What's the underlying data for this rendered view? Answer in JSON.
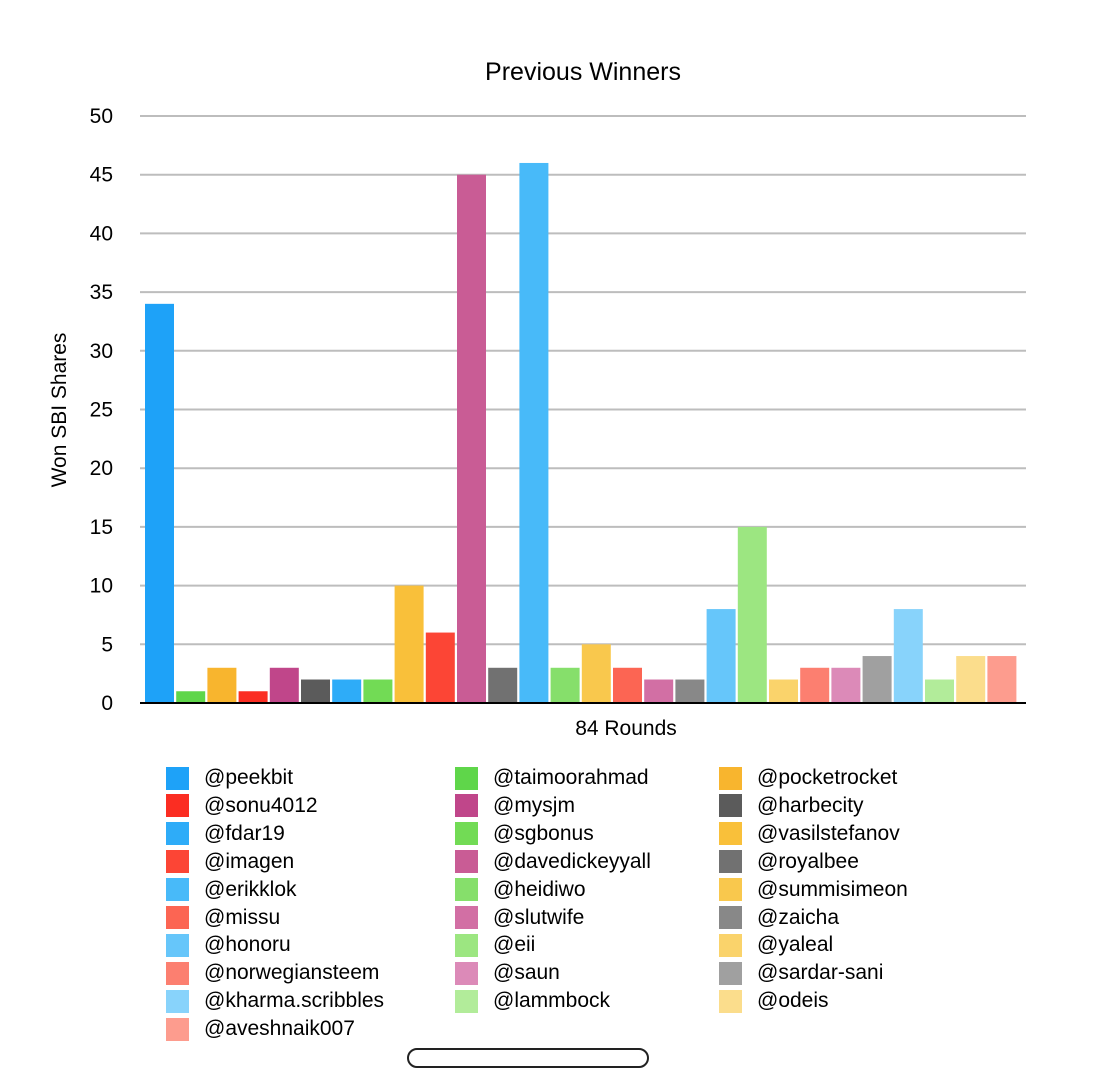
{
  "chart_data": {
    "type": "bar",
    "title": "Previous Winners",
    "xlabel": "84 Rounds",
    "ylabel": "Won SBI Shares",
    "ylim": [
      0,
      50
    ],
    "yticks": [
      0,
      5,
      10,
      15,
      20,
      25,
      30,
      35,
      40,
      45,
      50
    ],
    "grid": true,
    "legend_position": "bottom",
    "series": [
      {
        "name": "@peekbit",
        "value": 34,
        "color": "#1ea2f8"
      },
      {
        "name": "@taimoorahmad",
        "value": 1,
        "color": "#5fd64a"
      },
      {
        "name": "@pocketrocket",
        "value": 3,
        "color": "#f8b52e"
      },
      {
        "name": "@sonu4012",
        "value": 1,
        "color": "#fb2d22"
      },
      {
        "name": "@mysjm",
        "value": 3,
        "color": "#c0468a"
      },
      {
        "name": "@harbecity",
        "value": 2,
        "color": "#5b5b5b"
      },
      {
        "name": "@fdar19",
        "value": 2,
        "color": "#2eacf8"
      },
      {
        "name": "@sgbonus",
        "value": 2,
        "color": "#72db55"
      },
      {
        "name": "@vasilstefanov",
        "value": 10,
        "color": "#f9c03a"
      },
      {
        "name": "@imagen",
        "value": 6,
        "color": "#fc4535"
      },
      {
        "name": "@davedickeyyall",
        "value": 45,
        "color": "#c95c95"
      },
      {
        "name": "@royalbee",
        "value": 3,
        "color": "#717171"
      },
      {
        "name": "@erikklok",
        "value": 46,
        "color": "#48baf9"
      },
      {
        "name": "@heidiwo",
        "value": 3,
        "color": "#86df6b"
      },
      {
        "name": "@summisimeon",
        "value": 5,
        "color": "#f9c84d"
      },
      {
        "name": "@missu",
        "value": 3,
        "color": "#fc6553"
      },
      {
        "name": "@slutwife",
        "value": 2,
        "color": "#d26fa4"
      },
      {
        "name": "@zaicha",
        "value": 2,
        "color": "#888888"
      },
      {
        "name": "@honoru",
        "value": 8,
        "color": "#66c6fa"
      },
      {
        "name": "@eii",
        "value": 15,
        "color": "#9ce681"
      },
      {
        "name": "@yaleal",
        "value": 2,
        "color": "#fad36b"
      },
      {
        "name": "@norwegiansteem",
        "value": 3,
        "color": "#fc7f70"
      },
      {
        "name": "@saun",
        "value": 3,
        "color": "#dc8ab8"
      },
      {
        "name": "@sardar-sani",
        "value": 4,
        "color": "#a0a0a0"
      },
      {
        "name": "@kharma.scribbles",
        "value": 8,
        "color": "#88d3fb"
      },
      {
        "name": "@lammbock",
        "value": 2,
        "color": "#b2ec9a"
      },
      {
        "name": "@odeis",
        "value": 4,
        "color": "#fbdd8c"
      },
      {
        "name": "@aveshnaik007",
        "value": 4,
        "color": "#fd9c8e"
      }
    ]
  }
}
